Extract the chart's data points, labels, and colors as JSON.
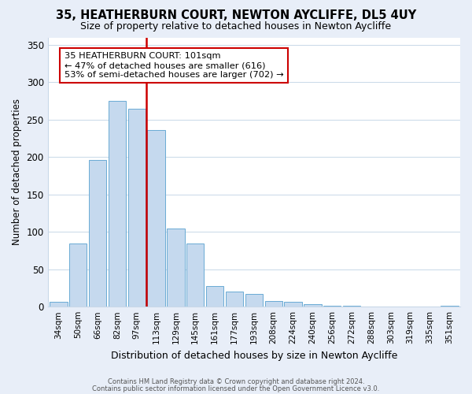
{
  "title": "35, HEATHERBURN COURT, NEWTON AYCLIFFE, DL5 4UY",
  "subtitle": "Size of property relative to detached houses in Newton Aycliffe",
  "xlabel": "Distribution of detached houses by size in Newton Aycliffe",
  "ylabel": "Number of detached properties",
  "bar_labels": [
    "34sqm",
    "50sqm",
    "66sqm",
    "82sqm",
    "97sqm",
    "113sqm",
    "129sqm",
    "145sqm",
    "161sqm",
    "177sqm",
    "193sqm",
    "208sqm",
    "224sqm",
    "240sqm",
    "256sqm",
    "272sqm",
    "288sqm",
    "303sqm",
    "319sqm",
    "335sqm",
    "351sqm"
  ],
  "bar_values": [
    6,
    84,
    196,
    275,
    265,
    236,
    104,
    84,
    28,
    20,
    17,
    8,
    6,
    3,
    1,
    1,
    0,
    0,
    0,
    0,
    1
  ],
  "bar_color": "#c5d9ee",
  "bar_edge_color": "#6aaad4",
  "vline_x": 4.5,
  "vline_color": "#cc0000",
  "ylim": [
    0,
    360
  ],
  "yticks": [
    0,
    50,
    100,
    150,
    200,
    250,
    300,
    350
  ],
  "annotation_text": "35 HEATHERBURN COURT: 101sqm\n← 47% of detached houses are smaller (616)\n53% of semi-detached houses are larger (702) →",
  "annotation_box_color": "#ffffff",
  "annotation_box_edge": "#cc0000",
  "footer_line1": "Contains HM Land Registry data © Crown copyright and database right 2024.",
  "footer_line2": "Contains public sector information licensed under the Open Government Licence v3.0.",
  "fig_bg_color": "#e8eef8",
  "plot_bg_color": "#ffffff"
}
